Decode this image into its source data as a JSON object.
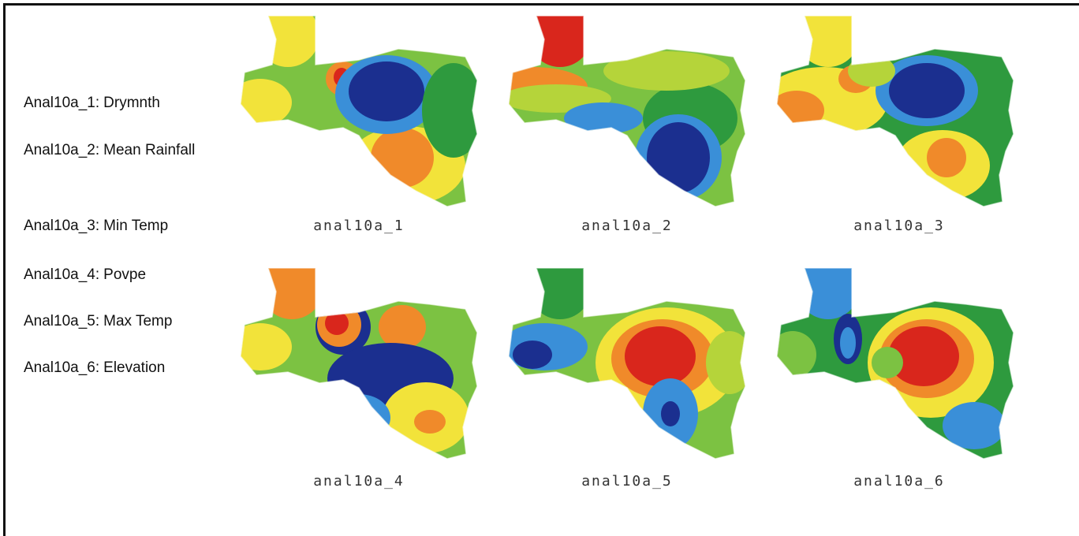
{
  "legend": [
    {
      "key": "Anal10a_1:",
      "text": "Drymnth"
    },
    {
      "key": "Anal10a_2:",
      "text": "Mean Rainfall"
    },
    {
      "key": "Anal10a_3:",
      "text": "Min Temp"
    },
    {
      "key": "Anal10a_4:",
      "text": "Povpe"
    },
    {
      "key": "Anal10a_5:",
      "text": "Max Temp"
    },
    {
      "key": "Anal10a_6:",
      "text": "Elevation"
    }
  ],
  "maps": [
    {
      "caption": "anal10a_1"
    },
    {
      "caption": "anal10a_2"
    },
    {
      "caption": "anal10a_3"
    },
    {
      "caption": "anal10a_4"
    },
    {
      "caption": "anal10a_5"
    },
    {
      "caption": "anal10a_6"
    }
  ]
}
